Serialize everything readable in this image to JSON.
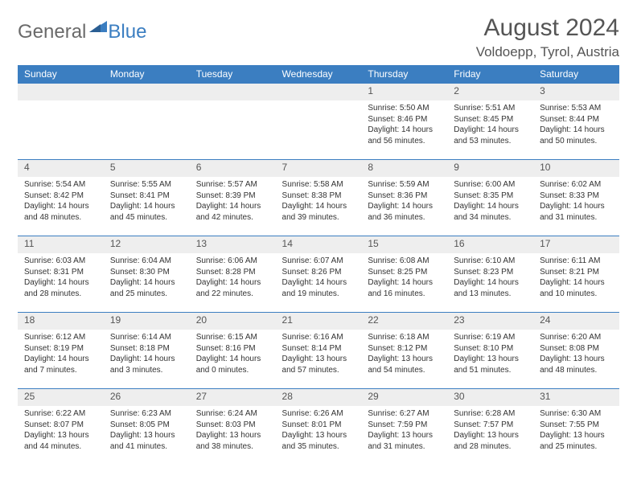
{
  "logo": {
    "part1": "General",
    "part2": "Blue"
  },
  "title": "August 2024",
  "location": "Voldoepp, Tyrol, Austria",
  "colors": {
    "header_bg": "#3b7ec1",
    "header_text": "#ffffff",
    "daynum_bg": "#eeeeee",
    "border": "#3b7ec1",
    "text": "#333333",
    "logo_gray": "#6a6a6a",
    "logo_blue": "#3b7ec1",
    "page_bg": "#ffffff"
  },
  "weekdays": [
    "Sunday",
    "Monday",
    "Tuesday",
    "Wednesday",
    "Thursday",
    "Friday",
    "Saturday"
  ],
  "weeks": [
    [
      null,
      null,
      null,
      null,
      {
        "n": "1",
        "sunrise": "Sunrise: 5:50 AM",
        "sunset": "Sunset: 8:46 PM",
        "day": "Daylight: 14 hours and 56 minutes."
      },
      {
        "n": "2",
        "sunrise": "Sunrise: 5:51 AM",
        "sunset": "Sunset: 8:45 PM",
        "day": "Daylight: 14 hours and 53 minutes."
      },
      {
        "n": "3",
        "sunrise": "Sunrise: 5:53 AM",
        "sunset": "Sunset: 8:44 PM",
        "day": "Daylight: 14 hours and 50 minutes."
      }
    ],
    [
      {
        "n": "4",
        "sunrise": "Sunrise: 5:54 AM",
        "sunset": "Sunset: 8:42 PM",
        "day": "Daylight: 14 hours and 48 minutes."
      },
      {
        "n": "5",
        "sunrise": "Sunrise: 5:55 AM",
        "sunset": "Sunset: 8:41 PM",
        "day": "Daylight: 14 hours and 45 minutes."
      },
      {
        "n": "6",
        "sunrise": "Sunrise: 5:57 AM",
        "sunset": "Sunset: 8:39 PM",
        "day": "Daylight: 14 hours and 42 minutes."
      },
      {
        "n": "7",
        "sunrise": "Sunrise: 5:58 AM",
        "sunset": "Sunset: 8:38 PM",
        "day": "Daylight: 14 hours and 39 minutes."
      },
      {
        "n": "8",
        "sunrise": "Sunrise: 5:59 AM",
        "sunset": "Sunset: 8:36 PM",
        "day": "Daylight: 14 hours and 36 minutes."
      },
      {
        "n": "9",
        "sunrise": "Sunrise: 6:00 AM",
        "sunset": "Sunset: 8:35 PM",
        "day": "Daylight: 14 hours and 34 minutes."
      },
      {
        "n": "10",
        "sunrise": "Sunrise: 6:02 AM",
        "sunset": "Sunset: 8:33 PM",
        "day": "Daylight: 14 hours and 31 minutes."
      }
    ],
    [
      {
        "n": "11",
        "sunrise": "Sunrise: 6:03 AM",
        "sunset": "Sunset: 8:31 PM",
        "day": "Daylight: 14 hours and 28 minutes."
      },
      {
        "n": "12",
        "sunrise": "Sunrise: 6:04 AM",
        "sunset": "Sunset: 8:30 PM",
        "day": "Daylight: 14 hours and 25 minutes."
      },
      {
        "n": "13",
        "sunrise": "Sunrise: 6:06 AM",
        "sunset": "Sunset: 8:28 PM",
        "day": "Daylight: 14 hours and 22 minutes."
      },
      {
        "n": "14",
        "sunrise": "Sunrise: 6:07 AM",
        "sunset": "Sunset: 8:26 PM",
        "day": "Daylight: 14 hours and 19 minutes."
      },
      {
        "n": "15",
        "sunrise": "Sunrise: 6:08 AM",
        "sunset": "Sunset: 8:25 PM",
        "day": "Daylight: 14 hours and 16 minutes."
      },
      {
        "n": "16",
        "sunrise": "Sunrise: 6:10 AM",
        "sunset": "Sunset: 8:23 PM",
        "day": "Daylight: 14 hours and 13 minutes."
      },
      {
        "n": "17",
        "sunrise": "Sunrise: 6:11 AM",
        "sunset": "Sunset: 8:21 PM",
        "day": "Daylight: 14 hours and 10 minutes."
      }
    ],
    [
      {
        "n": "18",
        "sunrise": "Sunrise: 6:12 AM",
        "sunset": "Sunset: 8:19 PM",
        "day": "Daylight: 14 hours and 7 minutes."
      },
      {
        "n": "19",
        "sunrise": "Sunrise: 6:14 AM",
        "sunset": "Sunset: 8:18 PM",
        "day": "Daylight: 14 hours and 3 minutes."
      },
      {
        "n": "20",
        "sunrise": "Sunrise: 6:15 AM",
        "sunset": "Sunset: 8:16 PM",
        "day": "Daylight: 14 hours and 0 minutes."
      },
      {
        "n": "21",
        "sunrise": "Sunrise: 6:16 AM",
        "sunset": "Sunset: 8:14 PM",
        "day": "Daylight: 13 hours and 57 minutes."
      },
      {
        "n": "22",
        "sunrise": "Sunrise: 6:18 AM",
        "sunset": "Sunset: 8:12 PM",
        "day": "Daylight: 13 hours and 54 minutes."
      },
      {
        "n": "23",
        "sunrise": "Sunrise: 6:19 AM",
        "sunset": "Sunset: 8:10 PM",
        "day": "Daylight: 13 hours and 51 minutes."
      },
      {
        "n": "24",
        "sunrise": "Sunrise: 6:20 AM",
        "sunset": "Sunset: 8:08 PM",
        "day": "Daylight: 13 hours and 48 minutes."
      }
    ],
    [
      {
        "n": "25",
        "sunrise": "Sunrise: 6:22 AM",
        "sunset": "Sunset: 8:07 PM",
        "day": "Daylight: 13 hours and 44 minutes."
      },
      {
        "n": "26",
        "sunrise": "Sunrise: 6:23 AM",
        "sunset": "Sunset: 8:05 PM",
        "day": "Daylight: 13 hours and 41 minutes."
      },
      {
        "n": "27",
        "sunrise": "Sunrise: 6:24 AM",
        "sunset": "Sunset: 8:03 PM",
        "day": "Daylight: 13 hours and 38 minutes."
      },
      {
        "n": "28",
        "sunrise": "Sunrise: 6:26 AM",
        "sunset": "Sunset: 8:01 PM",
        "day": "Daylight: 13 hours and 35 minutes."
      },
      {
        "n": "29",
        "sunrise": "Sunrise: 6:27 AM",
        "sunset": "Sunset: 7:59 PM",
        "day": "Daylight: 13 hours and 31 minutes."
      },
      {
        "n": "30",
        "sunrise": "Sunrise: 6:28 AM",
        "sunset": "Sunset: 7:57 PM",
        "day": "Daylight: 13 hours and 28 minutes."
      },
      {
        "n": "31",
        "sunrise": "Sunrise: 6:30 AM",
        "sunset": "Sunset: 7:55 PM",
        "day": "Daylight: 13 hours and 25 minutes."
      }
    ]
  ]
}
